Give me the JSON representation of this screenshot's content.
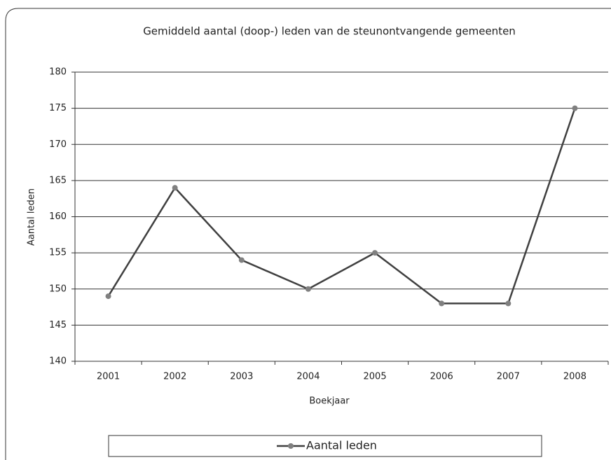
{
  "chart_data": {
    "type": "line",
    "title": "Gemiddeld aantal (doop-) leden van de steunontvangende gemeenten",
    "x_label": "Boekjaar",
    "y_label": "Aantal leden",
    "categories": [
      "2001",
      "2002",
      "2003",
      "2004",
      "2005",
      "2006",
      "2007",
      "2008"
    ],
    "series": [
      {
        "name": "Aantal leden",
        "color": "#404040",
        "marker_color": "#808080",
        "values": [
          149,
          164,
          154,
          150,
          155,
          148,
          148,
          175
        ]
      }
    ],
    "ylim": [
      140,
      180
    ],
    "yticks": [
      140,
      145,
      150,
      155,
      160,
      165,
      170,
      175,
      180
    ],
    "grid": true,
    "legend": "bottom"
  }
}
